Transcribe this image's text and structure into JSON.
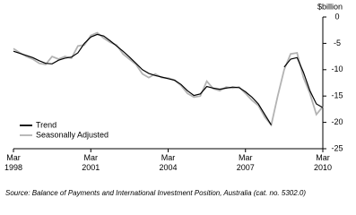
{
  "chart_data": {
    "type": "line",
    "y_label": "$billion",
    "source": "Source: Balance of Payments and International Investment Position, Australia (cat. no. 5302.0)",
    "categories": [
      "Mar 1998",
      null,
      null,
      null,
      null,
      null,
      null,
      null,
      null,
      null,
      null,
      null,
      "Mar 2001",
      null,
      null,
      null,
      null,
      null,
      null,
      null,
      null,
      null,
      null,
      null,
      "Mar 2004",
      null,
      null,
      null,
      null,
      null,
      null,
      null,
      null,
      null,
      null,
      null,
      "Mar 2007",
      null,
      null,
      null,
      null,
      null,
      null,
      null,
      null,
      null,
      null,
      null,
      "Mar 2010"
    ],
    "series": [
      {
        "name": "Trend",
        "color": "#000000",
        "values": [
          -6.5,
          -6.9,
          -7.3,
          -7.7,
          -8.3,
          -8.8,
          -8.9,
          -8.2,
          -7.8,
          -7.6,
          -6.8,
          -5.0,
          -3.8,
          -3.3,
          -3.6,
          -4.5,
          -5.5,
          -6.5,
          -7.6,
          -8.8,
          -10.0,
          -10.7,
          -11.1,
          -11.4,
          -11.7,
          -12.0,
          -12.8,
          -14.0,
          -14.9,
          -14.6,
          -13.2,
          -13.5,
          -13.7,
          -13.5,
          -13.3,
          -13.4,
          -14.2,
          -15.2,
          -16.5,
          -18.5,
          -20.5,
          null,
          -9.5,
          -8.0,
          -7.7,
          -10.5,
          -14.0,
          -16.5,
          -17.2
        ]
      },
      {
        "name": "Seasonally Adjusted",
        "color": "#b3b3b3",
        "values": [
          -6.0,
          -6.8,
          -7.5,
          -8.0,
          -8.8,
          -9.0,
          -7.5,
          -8.0,
          -7.5,
          -7.8,
          -5.5,
          -5.3,
          -3.5,
          -3.0,
          -4.0,
          -4.8,
          -5.3,
          -7.0,
          -8.0,
          -9.0,
          -10.8,
          -11.5,
          -10.8,
          -11.5,
          -11.6,
          -12.0,
          -13.0,
          -14.5,
          -15.2,
          -15.0,
          -12.2,
          -13.6,
          -14.0,
          -13.3,
          -13.5,
          -13.3,
          -14.5,
          -15.8,
          -16.8,
          -19.0,
          -20.5,
          -15.0,
          -10.0,
          -7.0,
          -6.8,
          -11.5,
          -14.5,
          -18.5,
          -17.0
        ]
      }
    ],
    "ylim": [
      -25,
      0
    ],
    "yticks": [
      0,
      -5,
      -10,
      -15,
      -20,
      -25
    ],
    "y_axis_side": "right"
  }
}
